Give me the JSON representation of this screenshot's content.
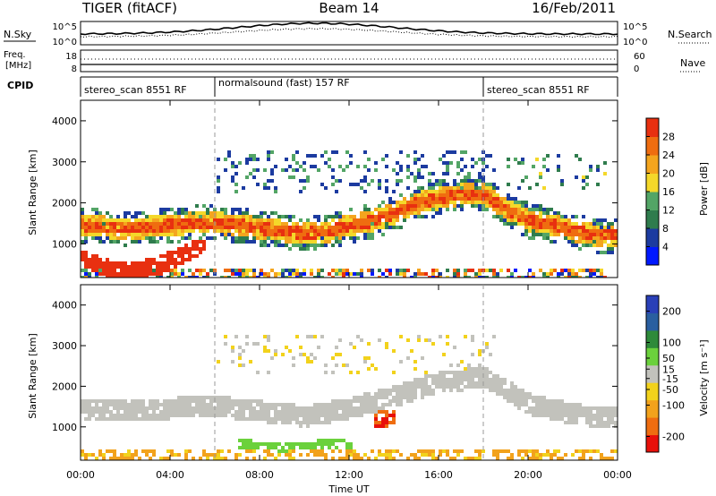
{
  "header": {
    "title": "TIGER (fitACF)",
    "beam": "Beam 14",
    "date": "16/Feb/2011"
  },
  "summary": {
    "nsky_label": "N.Sky",
    "nsearch_label": "N.Search",
    "freq_label": "Freq.",
    "freq_unit": "[MHz]",
    "nave_label": "Nave",
    "cpid_label": "CPID",
    "nsky_ticks": [
      "10^5",
      "10^0"
    ],
    "nsearch_ticks": [
      "10^5",
      "10^0"
    ],
    "freq_ticks": [
      "18",
      "8"
    ],
    "nave_ticks": [
      "60",
      "0"
    ]
  },
  "cpid": [
    {
      "label": "stereo_scan 8551 RF",
      "start": 0,
      "end": 6
    },
    {
      "label": "normalsound (fast) 157 RF",
      "start": 6,
      "end": 18
    },
    {
      "label": "stereo_scan 8551 RF",
      "start": 18,
      "end": 24
    }
  ],
  "colors": {
    "power": [
      "#0018ff",
      "#1c3ba0",
      "#2f7c4d",
      "#53a566",
      "#f4d82a",
      "#f4a51e",
      "#ef6d10",
      "#e83010"
    ],
    "velocity": [
      "#2a40b8",
      "#2a5fa0",
      "#2e8a3a",
      "#6bd13c",
      "#c2c2bc",
      "#f2d21c",
      "#f2a21c",
      "#ef6d10",
      "#e8100a"
    ]
  },
  "chart_data": [
    {
      "type": "heatmap",
      "name": "Power",
      "ylabel": "Slant Range [km]",
      "xlabel": "Time UT",
      "xlim": [
        0,
        24
      ],
      "ylim": [
        180,
        4500
      ],
      "x_ticks": [
        "00:00",
        "04:00",
        "08:00",
        "12:00",
        "16:00",
        "20:00",
        "00:00"
      ],
      "y_ticks": [
        1000,
        2000,
        3000,
        4000
      ],
      "colorbar": {
        "label": "Power [dB]",
        "ticks": [
          4,
          8,
          12,
          16,
          20,
          24,
          28
        ],
        "range": [
          0,
          32
        ]
      },
      "features": [
        {
          "hours": [
            0,
            1,
            2,
            3,
            4,
            5,
            6,
            7,
            8,
            9,
            10,
            11,
            12,
            13,
            14,
            15,
            16,
            17,
            18,
            19,
            20,
            21,
            22,
            23,
            24
          ],
          "range_km": [
            1500,
            1450,
            1420,
            1450,
            1500,
            1550,
            1550,
            1500,
            1420,
            1350,
            1300,
            1350,
            1500,
            1600,
            1800,
            2050,
            2150,
            2250,
            2250,
            1850,
            1600,
            1500,
            1350,
            1250,
            1250
          ],
          "power_db": 24
        },
        {
          "hours": [
            0,
            1,
            2,
            3,
            4,
            5
          ],
          "range_km": [
            700,
            450,
            380,
            450,
            650,
            900
          ],
          "power_db": 28
        }
      ]
    },
    {
      "type": "heatmap",
      "name": "Velocity",
      "ylabel": "Slant Range [km]",
      "xlabel": "Time UT",
      "xlim": [
        0,
        24
      ],
      "ylim": [
        180,
        4500
      ],
      "x_ticks": [
        "00:00",
        "04:00",
        "08:00",
        "12:00",
        "16:00",
        "20:00",
        "00:00"
      ],
      "y_ticks": [
        1000,
        2000,
        3000,
        4000
      ],
      "colorbar": {
        "label": "Velocity [m s⁻¹]",
        "ticks": [
          200,
          100,
          50,
          15,
          -15,
          -50,
          -100,
          -200
        ],
        "range": [
          -250,
          250
        ]
      },
      "features": [
        {
          "hours": [
            0,
            2,
            4,
            6,
            8,
            10,
            12,
            14,
            16,
            18,
            20,
            22,
            24
          ],
          "range_km": [
            1500,
            1420,
            1500,
            1550,
            1420,
            1300,
            1500,
            1800,
            2150,
            2250,
            1600,
            1350,
            1250
          ],
          "velocity": 0
        },
        {
          "hours": [
            7,
            8,
            9,
            10,
            11,
            12
          ],
          "range_km": [
            600,
            580,
            560,
            580,
            600,
            620
          ],
          "velocity": 40
        },
        {
          "hours": [
            13,
            14
          ],
          "range_km": [
            1200,
            1300
          ],
          "velocity": -120
        }
      ]
    }
  ]
}
